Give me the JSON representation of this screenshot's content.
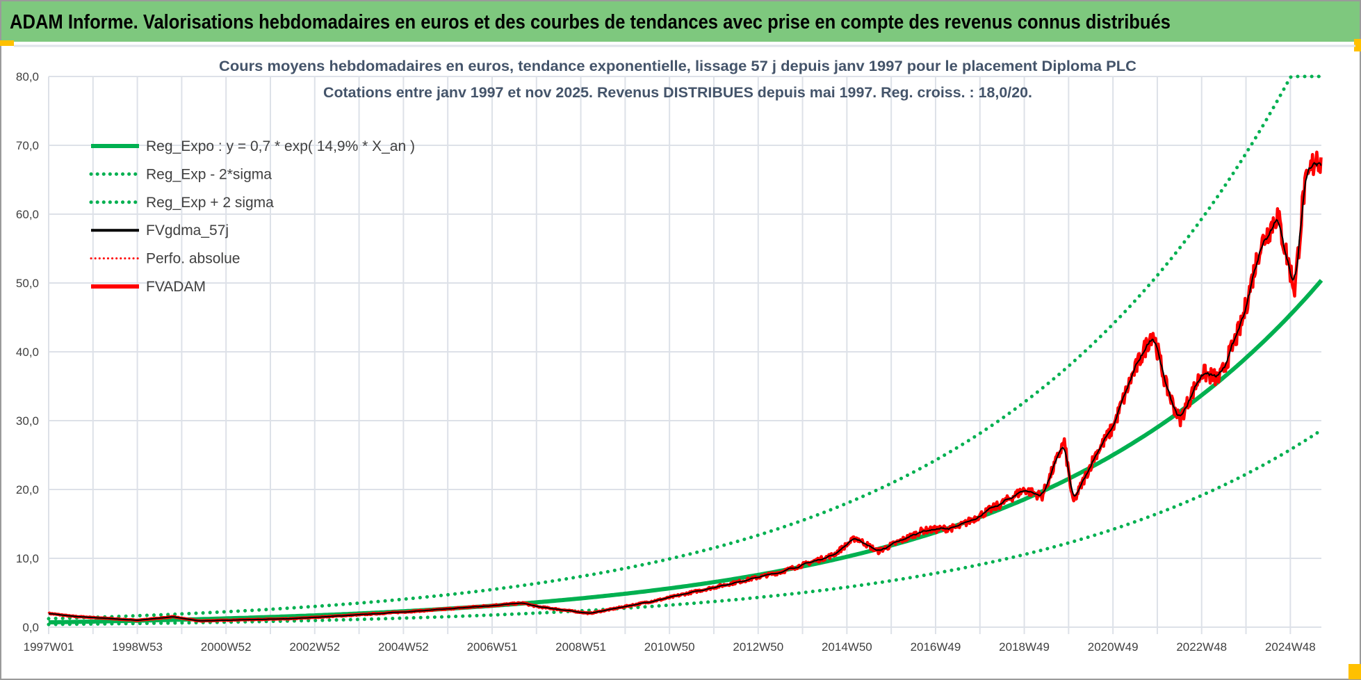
{
  "header": {
    "title": "ADAM Informe. Valorisations hebdomadaires en euros et des courbes de tendances avec prise en compte des revenus connus distribués"
  },
  "colors": {
    "header_bg": "#7ec87e",
    "green": "#00b050",
    "green_dotted": "#00b050",
    "black": "#000000",
    "red": "#ff0000",
    "grid": "#dde1e8",
    "accent": "#ffc000"
  },
  "chart_data": {
    "type": "line",
    "title": [
      "Cours moyens hebdomadaires en euros, tendance exponentielle, lissage 57 j depuis janv 1997  pour le placement Diploma PLC",
      "Cotations entre janv 1997 et nov 2025. Revenus DISTRIBUES depuis mai 1997.  Reg. croiss. : 18,0/20."
    ],
    "ylim": [
      0,
      80
    ],
    "xlim": [
      1997.0,
      2025.7
    ],
    "y_ticks": [
      "0,0",
      "10,0",
      "20,0",
      "30,0",
      "40,0",
      "50,0",
      "60,0",
      "70,0",
      "80,0"
    ],
    "x_ticks": [
      "1997W01",
      "1998W53",
      "2000W52",
      "2002W52",
      "2004W52",
      "2006W51",
      "2008W51",
      "2010W50",
      "2012W50",
      "2014W50",
      "2016W49",
      "2018W49",
      "2020W49",
      "2022W48",
      "2024W48"
    ],
    "legend": [
      "Reg_Expo : y = 0,7 * exp( 14,9% *  X_an )",
      "Reg_Exp - 2*sigma",
      "Reg_Exp + 2 sigma",
      "FVgdma_57j",
      "Perfo. absolue",
      "FVADAM"
    ],
    "legend_position": "top-left",
    "regression": {
      "a": 0.7,
      "rate": 0.149,
      "sigma_factor": 1.76
    },
    "FVADAM_points": [
      [
        1997.0,
        2.0
      ],
      [
        1997.5,
        1.6
      ],
      [
        1998.0,
        1.4
      ],
      [
        1999.0,
        1.0
      ],
      [
        1999.8,
        1.5
      ],
      [
        2000.4,
        0.9
      ],
      [
        2001.5,
        1.1
      ],
      [
        2002.4,
        1.2
      ],
      [
        2004.0,
        1.8
      ],
      [
        2005.7,
        2.5
      ],
      [
        2007.7,
        3.5
      ],
      [
        2008.0,
        3.0
      ],
      [
        2009.2,
        2.0
      ],
      [
        2010.8,
        4.0
      ],
      [
        2011.6,
        5.2
      ],
      [
        2012.5,
        6.5
      ],
      [
        2013.5,
        8.0
      ],
      [
        2014.7,
        10.5
      ],
      [
        2015.2,
        13.0
      ],
      [
        2015.7,
        11.0
      ],
      [
        2016.7,
        14.0
      ],
      [
        2017.5,
        14.5
      ],
      [
        2018.5,
        18.0
      ],
      [
        2019.0,
        20.0
      ],
      [
        2019.4,
        19.0
      ],
      [
        2019.9,
        27.0
      ],
      [
        2020.1,
        18.0
      ],
      [
        2020.6,
        25.0
      ],
      [
        2021.0,
        29.0
      ],
      [
        2021.4,
        36.0
      ],
      [
        2021.9,
        43.0
      ],
      [
        2022.2,
        35.0
      ],
      [
        2022.5,
        30.0
      ],
      [
        2023.0,
        37.0
      ],
      [
        2023.4,
        36.0
      ],
      [
        2023.9,
        44.0
      ],
      [
        2024.3,
        55.0
      ],
      [
        2024.7,
        60.0
      ],
      [
        2025.1,
        49.0
      ],
      [
        2025.3,
        63.0
      ],
      [
        2025.6,
        69.0
      ],
      [
        2025.7,
        67.0
      ]
    ]
  }
}
